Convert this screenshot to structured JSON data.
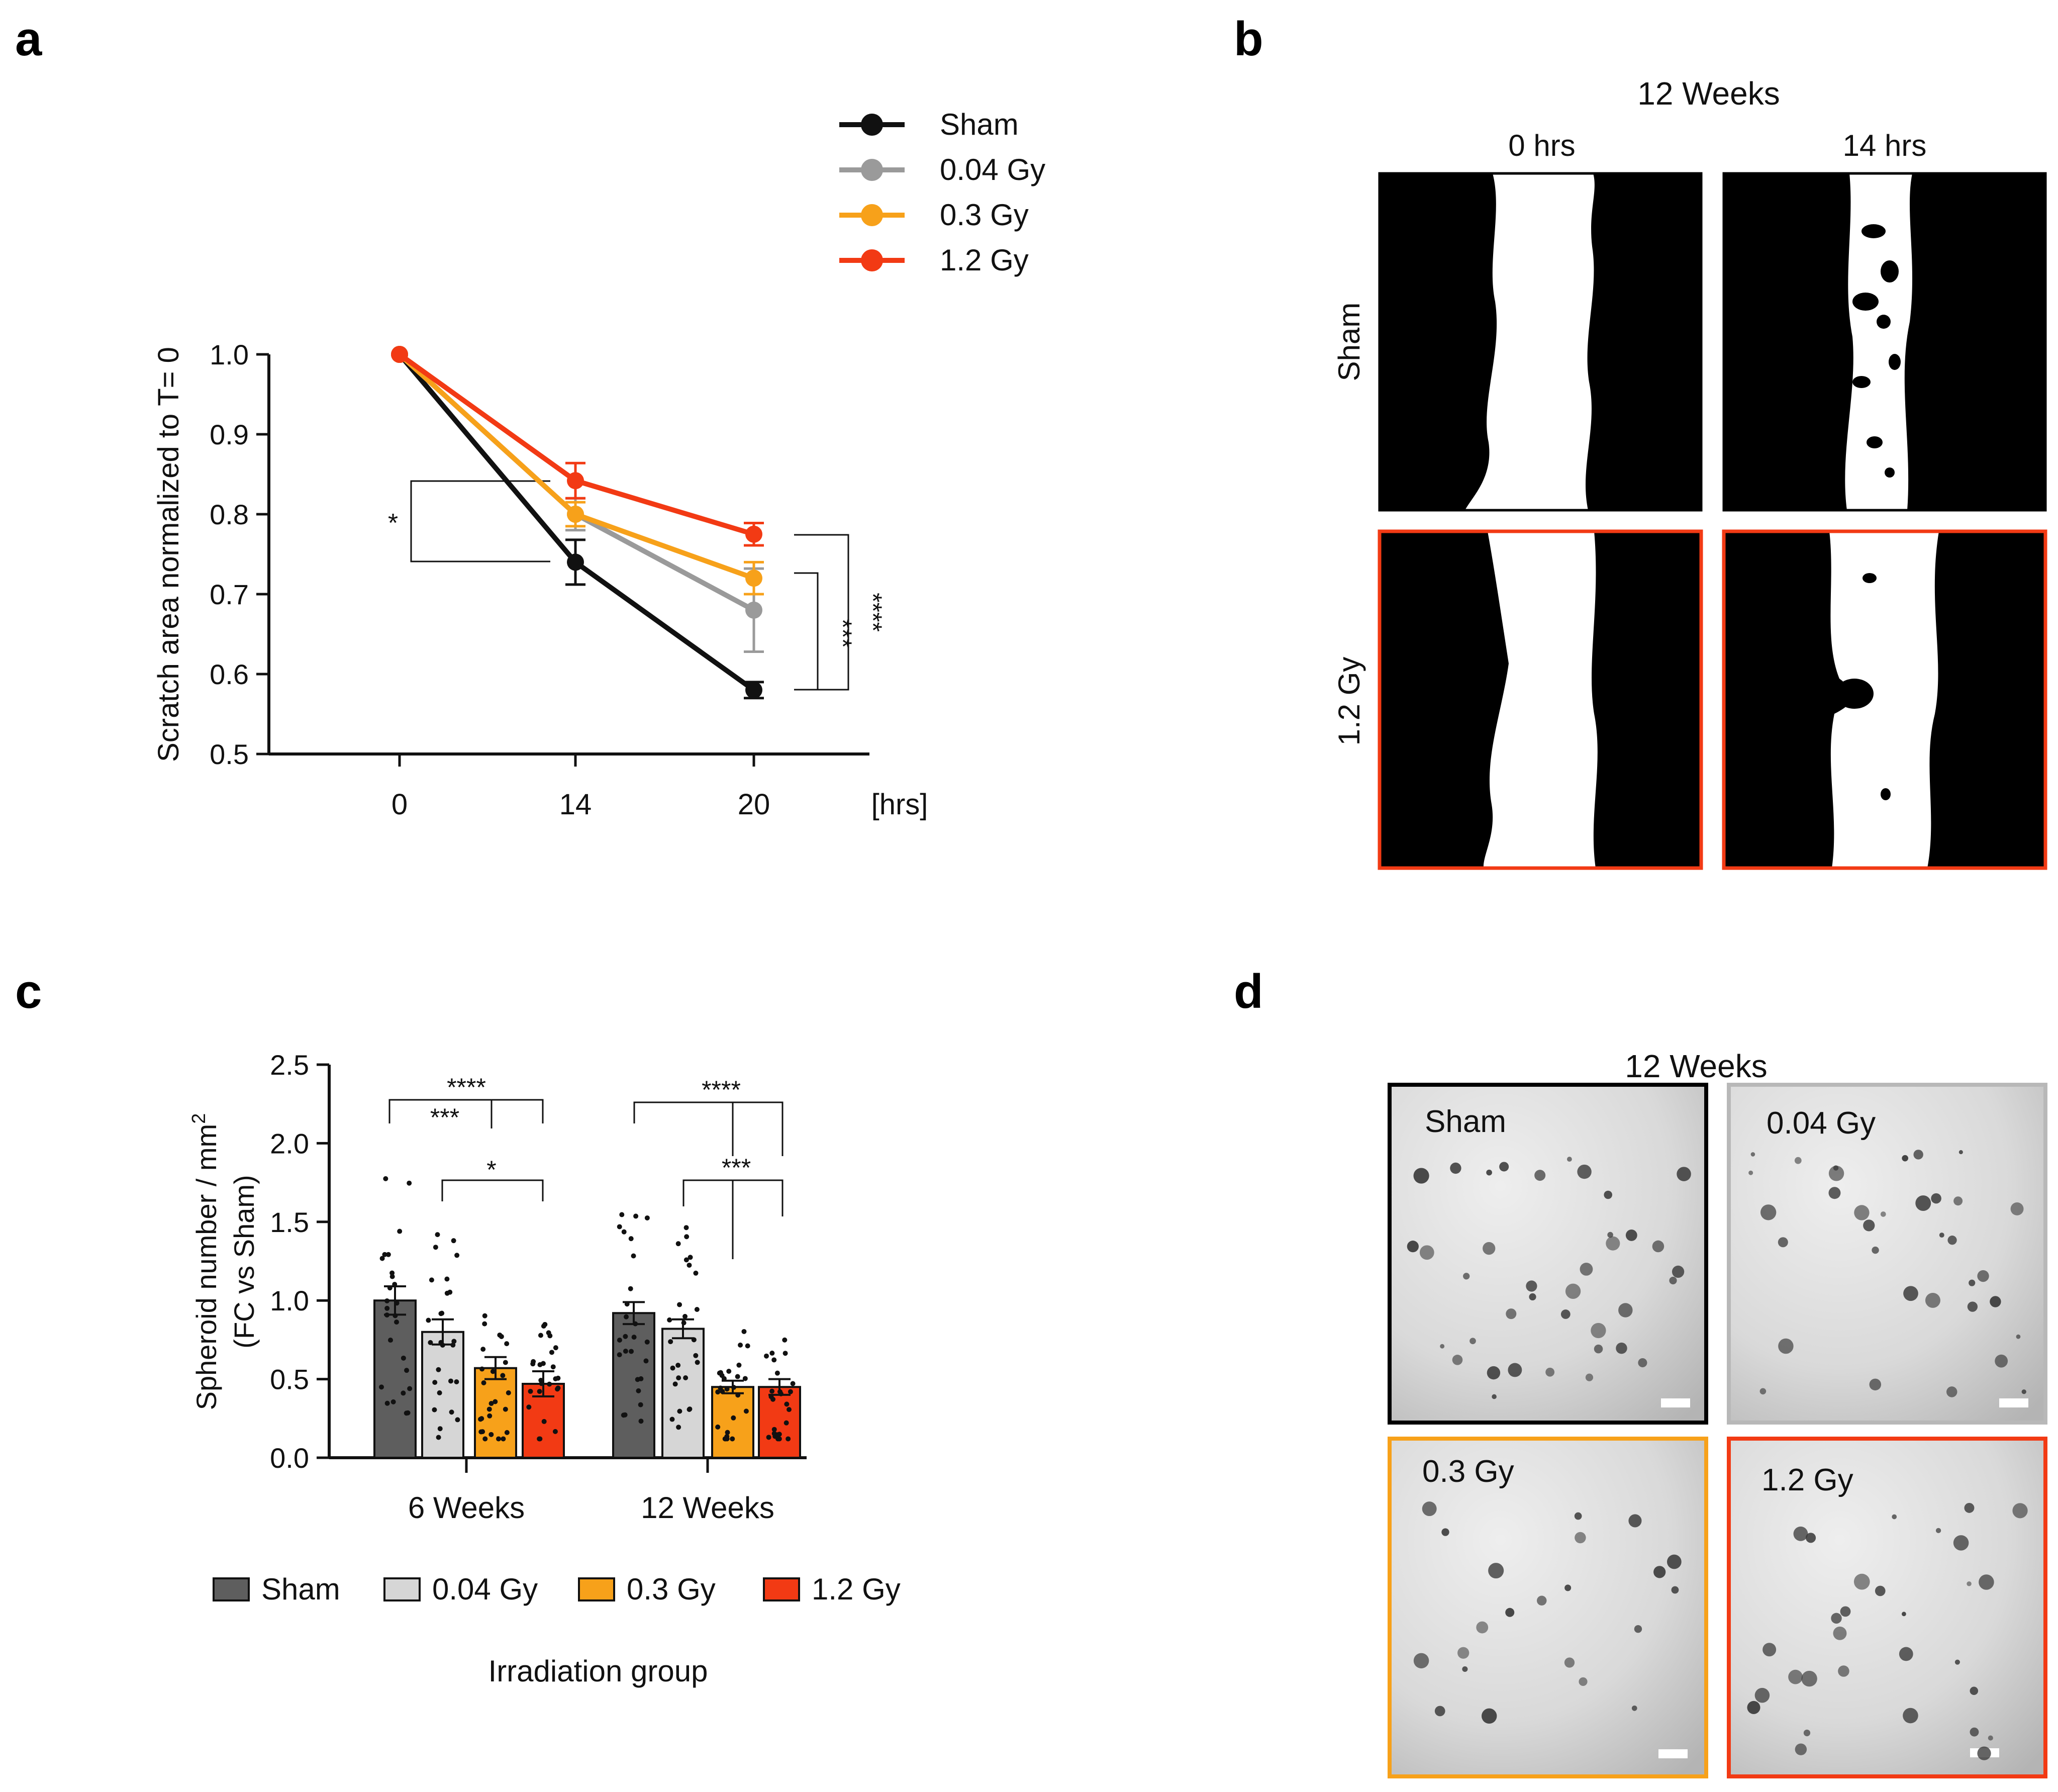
{
  "panel_labels": [
    "a",
    "b",
    "c",
    "d"
  ],
  "colors": {
    "sham": "#111111",
    "gy004": "#9a9a9a",
    "gy03": "#f7a11a",
    "gy12": "#f23a14",
    "sham_bar": "#5e5e5e",
    "gy004_bar": "#d6d6d6",
    "gy03_bar": "#f7a11a",
    "gy12_bar": "#f23a14"
  },
  "chart_data": [
    {
      "type": "line",
      "panel": "a",
      "ylabel": "Scratch area normalized to T= 0",
      "xunit": "[hrs]",
      "x": [
        0,
        14,
        20
      ],
      "xticks": [
        "0",
        "14",
        "20"
      ],
      "ylim": [
        0.5,
        1.0
      ],
      "yticks": [
        "0.5",
        "0.6",
        "0.7",
        "0.8",
        "0.9",
        "1.0"
      ],
      "series": [
        {
          "name": "Sham",
          "values": [
            1.0,
            0.74,
            0.58
          ],
          "errors": [
            0,
            0.028,
            0.01
          ]
        },
        {
          "name": "0.04 Gy",
          "values": [
            1.0,
            0.8,
            0.68
          ],
          "errors": [
            0,
            0.02,
            0.052
          ]
        },
        {
          "name": "0.3 Gy",
          "values": [
            1.0,
            0.8,
            0.72
          ],
          "errors": [
            0,
            0.015,
            0.02
          ]
        },
        {
          "name": "1.2 Gy",
          "values": [
            1.0,
            0.842,
            0.775
          ],
          "errors": [
            0,
            0.022,
            0.014
          ]
        }
      ],
      "significance": [
        "*",
        "***",
        "****"
      ]
    },
    {
      "type": "bar",
      "panel": "c",
      "ylabel_line1": "Spheroid number / mm",
      "ylabel_sup": "2",
      "ylabel_line2": "(FC vs Sham)",
      "xlabel": "Irradiation group",
      "categories": [
        "6 Weeks",
        "12 Weeks"
      ],
      "ylim": [
        0,
        2.5
      ],
      "yticks": [
        "0.0",
        "0.5",
        "1.0",
        "1.5",
        "2.0",
        "2.5"
      ],
      "series": [
        {
          "name": "Sham",
          "values": [
            1.0,
            0.92
          ],
          "errors": [
            0.09,
            0.07
          ]
        },
        {
          "name": "0.04 Gy",
          "values": [
            0.8,
            0.82
          ],
          "errors": [
            0.08,
            0.06
          ]
        },
        {
          "name": "0.3 Gy",
          "values": [
            0.57,
            0.45
          ],
          "errors": [
            0.07,
            0.04
          ]
        },
        {
          "name": "1.2 Gy",
          "values": [
            0.47,
            0.45
          ],
          "errors": [
            0.08,
            0.05
          ]
        }
      ],
      "significance": [
        "****",
        "***",
        "*",
        "****",
        "***"
      ]
    }
  ],
  "panel_b": {
    "title": "12 Weeks",
    "columns": [
      "0 hrs",
      "14 hrs"
    ],
    "rows": [
      "Sham",
      "1.2 Gy"
    ]
  },
  "panel_d": {
    "title": "12 Weeks",
    "labels": [
      "Sham",
      "0.04 Gy",
      "0.3 Gy",
      "1.2 Gy"
    ]
  }
}
